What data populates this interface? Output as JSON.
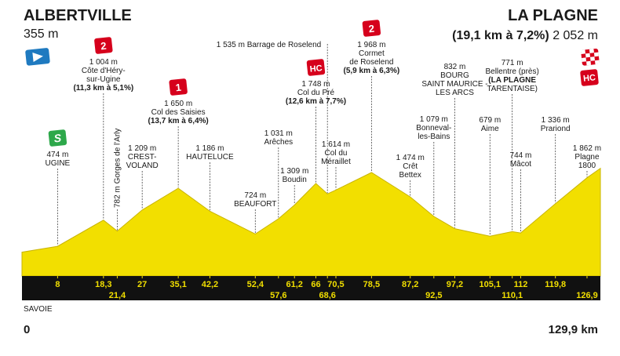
{
  "chart_data": {
    "type": "area",
    "start": {
      "name": "ALBERTVILLE",
      "altitude": "355 m"
    },
    "finish": {
      "name": "LA PLAGNE",
      "detail": "(19,1 km à 7,2%)",
      "altitude": "2 052 m",
      "category": "HC"
    },
    "region": "SAVOIE",
    "x": [
      0,
      8,
      18.3,
      21.4,
      27,
      35.1,
      42.2,
      52.4,
      57.6,
      61.2,
      66,
      68.6,
      70.5,
      78.5,
      87.2,
      92.5,
      97.2,
      105.1,
      110.1,
      112,
      119.8,
      126.9,
      129.9
    ],
    "values": [
      355,
      474,
      1004,
      782,
      1209,
      1650,
      1186,
      724,
      1031,
      1309,
      1748,
      1535,
      1614,
      1968,
      1474,
      1079,
      832,
      679,
      771,
      744,
      1336,
      1862,
      2052
    ],
    "color": "#f2df00",
    "xlim": [
      0,
      129.9
    ],
    "total_label": "129,9 km",
    "xticks": [
      8,
      {
        "value": 18.3,
        "label": "18,3"
      },
      {
        "value": 21.4,
        "label": "21,4"
      },
      27,
      {
        "value": 35.1,
        "label": "35,1"
      },
      {
        "value": 42.2,
        "label": "42,2"
      },
      {
        "value": 52.4,
        "label": "52,4"
      },
      {
        "value": 57.6,
        "label": "57,6"
      },
      {
        "value": 61.2,
        "label": "61,2"
      },
      66,
      {
        "value": 68.6,
        "label": "68,6"
      },
      {
        "value": 70.5,
        "label": "70,5"
      },
      {
        "value": 78.5,
        "label": "78,5"
      },
      {
        "value": 87.2,
        "label": "87,2"
      },
      {
        "value": 92.5,
        "label": "92,5"
      },
      {
        "value": 97.2,
        "label": "97,2"
      },
      {
        "value": 105.1,
        "label": "105,1"
      },
      {
        "value": 110.1,
        "label": "110,1"
      },
      112,
      {
        "value": 119.8,
        "label": "119,8"
      },
      {
        "value": 126.9,
        "label": "126,9"
      }
    ],
    "waypoints": [
      {
        "lines": [
          "474 m",
          "UGINE"
        ],
        "sprint": "S"
      },
      {
        "lines": [
          "1 004 m",
          "Côte d'Héry-",
          "sur-Ugine",
          "(11,3 km à 5,1%)"
        ],
        "category": "2"
      },
      {
        "lines": [
          "782 m Gorges de l'Arly"
        ]
      },
      {
        "lines": [
          "1 209 m",
          "CREST-",
          "VOLAND"
        ]
      },
      {
        "lines": [
          "1 650 m",
          "Col des Saisies",
          "(13,7 km à 6,4%)"
        ],
        "category": "1"
      },
      {
        "lines": [
          "1 186 m",
          "HAUTELUCE"
        ]
      },
      {
        "lines": [
          "724 m",
          "BEAUFORT"
        ]
      },
      {
        "lines": [
          "1 031 m",
          "Arêches"
        ]
      },
      {
        "lines": [
          "1 309 m",
          "Boudin"
        ]
      },
      {
        "lines": [
          "1 748 m",
          "Col du Pré",
          "(12,6 km à 7,7%)"
        ],
        "category": "HC"
      },
      {
        "lines": [
          "1 535 m Barrage de Roselend"
        ]
      },
      {
        "lines": [
          "1 614 m",
          "Col du",
          "Méraillet"
        ]
      },
      {
        "lines": [
          "1 968 m",
          "Cormet",
          "de Roselend",
          "(5,9 km à 6,3%)"
        ],
        "category": "2"
      },
      {
        "lines": [
          "1 474 m",
          "Crêt",
          "Bettex"
        ]
      },
      {
        "lines": [
          "1 079 m",
          "Bonneval-",
          "les-Bains"
        ]
      },
      {
        "lines": [
          "832 m",
          "BOURG",
          "SAINT MAURICE -",
          "LES ARCS"
        ]
      },
      {
        "lines": [
          "679 m",
          "Aime"
        ]
      },
      {
        "lines": [
          "771 m",
          "Bellentre (près)",
          "(LA PLAGNE",
          "TARENTAISE)"
        ]
      },
      {
        "lines": [
          "744 m",
          "Mâcot"
        ]
      },
      {
        "lines": [
          "1 336 m",
          "Prariond"
        ]
      },
      {
        "lines": [
          "1 862 m",
          "Plagne",
          "1800"
        ]
      }
    ]
  }
}
